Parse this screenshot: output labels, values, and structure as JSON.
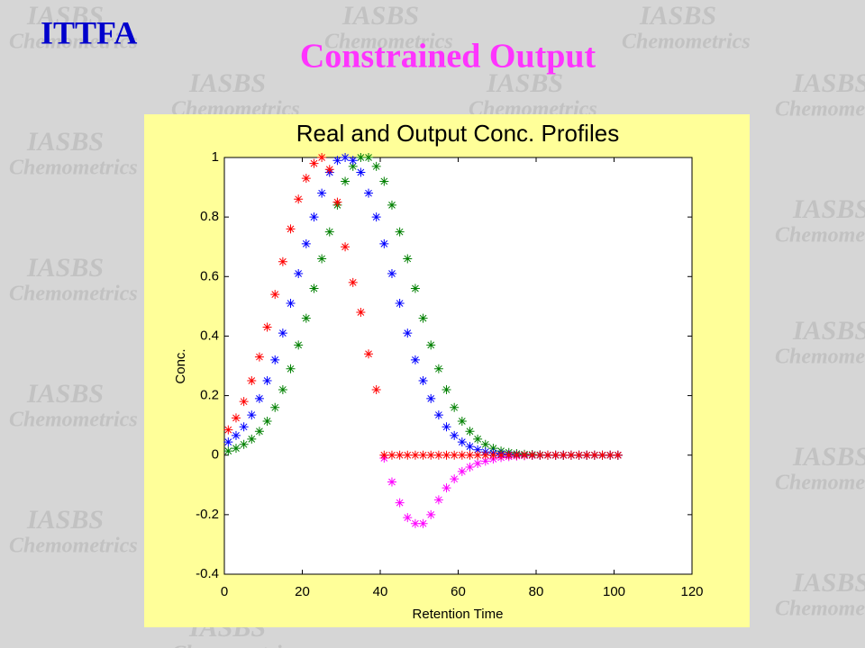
{
  "header": {
    "badge": "ITTFA",
    "title": "Constrained Output"
  },
  "watermark": {
    "line1": "IASBS",
    "line2": "Chemometrics"
  },
  "chart_data": {
    "type": "scatter",
    "title": "Real and Output Conc. Profiles",
    "x_label": "Retention Time",
    "y_label": "Conc.",
    "xlim": [
      0,
      120
    ],
    "ylim": [
      -0.4,
      1
    ],
    "xticks": [
      0,
      20,
      40,
      60,
      80,
      100,
      120
    ],
    "yticks": [
      -0.4,
      -0.2,
      0,
      0.2,
      0.4,
      0.6,
      0.8,
      1
    ],
    "marker": "asterisk",
    "x": [
      1,
      3,
      5,
      7,
      9,
      11,
      13,
      15,
      17,
      19,
      21,
      23,
      25,
      27,
      29,
      31,
      33,
      35,
      37,
      39,
      41,
      43,
      45,
      47,
      49,
      51,
      53,
      55,
      57,
      59,
      61,
      63,
      65,
      67,
      69,
      71,
      73,
      75,
      77,
      79,
      81,
      83,
      85,
      87,
      89,
      91,
      93,
      95,
      97,
      99,
      101
    ],
    "series": [
      {
        "color": "#ff00ff",
        "values": [
          null,
          null,
          null,
          null,
          null,
          null,
          null,
          null,
          null,
          null,
          null,
          null,
          null,
          null,
          null,
          null,
          null,
          null,
          null,
          null,
          -0.01,
          -0.09,
          -0.16,
          -0.21,
          -0.23,
          -0.23,
          -0.2,
          -0.15,
          -0.11,
          -0.08,
          -0.055,
          -0.04,
          -0.028,
          -0.02,
          -0.013,
          -0.008,
          -0.005,
          -0.003,
          -0.002,
          -0.001,
          0,
          0,
          0,
          0,
          0,
          0,
          0,
          0,
          0,
          0,
          0
        ]
      },
      {
        "color": "#008000",
        "values": [
          0.014,
          0.023,
          0.036,
          0.054,
          0.08,
          0.114,
          0.16,
          0.22,
          0.29,
          0.37,
          0.46,
          0.56,
          0.66,
          0.75,
          0.84,
          0.92,
          0.97,
          1.0,
          1.0,
          0.97,
          0.92,
          0.84,
          0.75,
          0.66,
          0.56,
          0.46,
          0.37,
          0.29,
          0.22,
          0.16,
          0.114,
          0.08,
          0.054,
          0.036,
          0.023,
          0.014,
          0.009,
          0.005,
          0.003,
          0.002,
          0.001,
          0,
          0,
          0,
          0,
          0,
          0,
          0,
          0,
          0,
          0
        ]
      },
      {
        "color": "#0000ff",
        "values": [
          0.044,
          0.066,
          0.095,
          0.135,
          0.19,
          0.25,
          0.32,
          0.41,
          0.51,
          0.61,
          0.71,
          0.8,
          0.88,
          0.95,
          0.99,
          1.0,
          0.99,
          0.95,
          0.88,
          0.8,
          0.71,
          0.61,
          0.51,
          0.41,
          0.32,
          0.25,
          0.19,
          0.135,
          0.095,
          0.066,
          0.044,
          0.029,
          0.018,
          0.011,
          0.007,
          0.004,
          0.002,
          0.001,
          0,
          0,
          0,
          0,
          0,
          0,
          0,
          0,
          0,
          0,
          0,
          0,
          0
        ]
      },
      {
        "color": "#ff0000",
        "values": [
          0.085,
          0.125,
          0.18,
          0.25,
          0.33,
          0.43,
          0.54,
          0.65,
          0.76,
          0.86,
          0.93,
          0.98,
          1.0,
          0.96,
          0.85,
          0.7,
          0.58,
          0.48,
          0.34,
          0.22,
          0,
          0,
          0,
          0,
          0,
          0,
          0,
          0,
          0,
          0,
          0,
          0,
          0,
          0,
          0,
          0,
          0,
          0,
          0,
          0,
          0,
          0,
          0,
          0,
          0,
          0,
          0,
          0,
          0,
          0,
          0
        ]
      }
    ]
  }
}
